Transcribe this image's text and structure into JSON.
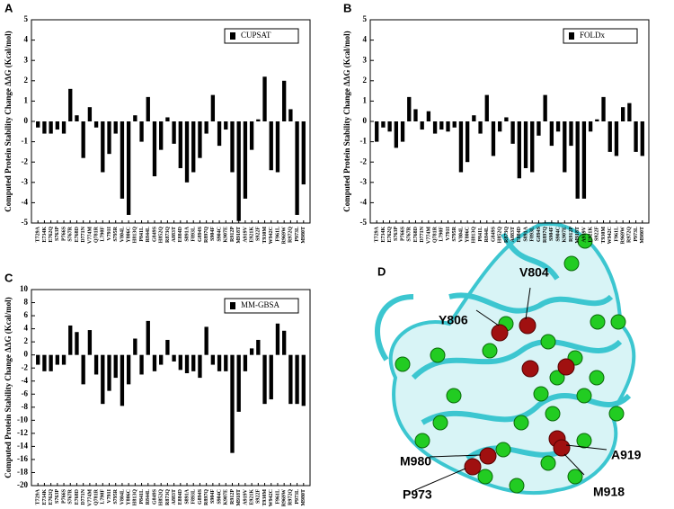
{
  "chart_data": [
    {
      "type": "bar",
      "label": "A",
      "ylabel": "Computed Protein Stability Change ΔΔG (Kcal/mol)",
      "categories": [
        "T729A",
        "E734K",
        "E762Q",
        "S763P",
        "P766S",
        "S767R",
        "E768D",
        "D771N",
        "V774M",
        "Q781R",
        "L790F",
        "V791I",
        "S795R",
        "V804L",
        "Y806C",
        "H813Q",
        "P841L",
        "R844L",
        "G849S",
        "H852Q",
        "R873Q",
        "A883T",
        "E884D",
        "S891A",
        "F893L",
        "G894S",
        "R897Q",
        "S904F",
        "S904C",
        "K907E",
        "R912P",
        "M918T",
        "A919V",
        "E921K",
        "S922F",
        "T930M",
        "W942C",
        "F961L",
        "R969W",
        "R972Q",
        "P973L",
        "M980T"
      ],
      "series": [
        {
          "name": "CUPSAT",
          "color": "#000000",
          "values": [
            -0.3,
            -0.6,
            -0.6,
            -0.4,
            -0.6,
            1.6,
            0.3,
            -1.8,
            0.7,
            -0.3,
            -2.5,
            -1.6,
            -0.6,
            -3.8,
            -4.6,
            0.3,
            -1.0,
            1.2,
            -2.7,
            -1.4,
            0.2,
            -1.1,
            -2.3,
            -3.0,
            -2.5,
            -1.8,
            -0.6,
            1.3,
            -1.2,
            -0.4,
            -2.5,
            -4.9,
            -3.8,
            -1.4,
            0.1,
            2.2,
            -2.4,
            -2.5,
            2.0,
            0.6,
            -4.6,
            -3.1
          ]
        }
      ],
      "ylim": [
        -5,
        5
      ],
      "yticks": [
        -5,
        -4,
        -3,
        -2,
        -1,
        0,
        1,
        2,
        3,
        4,
        5
      ],
      "legend": "upper right"
    },
    {
      "type": "bar",
      "label": "B",
      "ylabel": "Computed Protein Stability Change ΔΔG (Kcal/mol)",
      "categories": [
        "T729A",
        "E734K",
        "E762Q",
        "S763P",
        "P766S",
        "S767R",
        "E768D",
        "D771N",
        "V774M",
        "Q781R",
        "L790F",
        "V791I",
        "S795R",
        "V804L",
        "Y806C",
        "H813Q",
        "P841L",
        "R844L",
        "G849S",
        "H852Q",
        "R873Q",
        "A883T",
        "E884D",
        "S891A",
        "F893L",
        "G894S",
        "R897Q",
        "S904F",
        "S904C",
        "K907E",
        "R912P",
        "M918T",
        "A919V",
        "E921K",
        "S922F",
        "T930M",
        "W942C",
        "F961L",
        "R969W",
        "R972Q",
        "P973L",
        "M980T"
      ],
      "series": [
        {
          "name": "FOLDx",
          "color": "#000000",
          "values": [
            -1.0,
            -0.3,
            -0.5,
            -1.3,
            -1.0,
            1.2,
            0.6,
            -0.4,
            0.5,
            -0.6,
            -0.4,
            -0.5,
            -0.3,
            -2.5,
            -2.0,
            0.3,
            -0.6,
            1.3,
            -1.7,
            -0.5,
            0.2,
            -1.1,
            -2.8,
            -2.3,
            -2.5,
            -0.7,
            1.3,
            -1.2,
            -0.5,
            -2.5,
            -1.2,
            -3.8,
            -3.8,
            -0.5,
            0.1,
            1.2,
            -1.5,
            -1.7,
            0.7,
            0.9,
            -1.5,
            -1.7
          ]
        }
      ],
      "ylim": [
        -5,
        5
      ],
      "yticks": [
        -5,
        -4,
        -3,
        -2,
        -1,
        0,
        1,
        2,
        3,
        4,
        5
      ],
      "legend": "upper right"
    },
    {
      "type": "bar",
      "label": "C",
      "ylabel": "Computed Protein Stability Change ΔΔG (Kcal/mol)",
      "categories": [
        "T729A",
        "E734K",
        "E762Q",
        "S763P",
        "P766S",
        "S767R",
        "E768D",
        "D771N",
        "V774M",
        "Q781R",
        "L790F",
        "V791I",
        "S795R",
        "V804L",
        "Y806C",
        "H813Q",
        "P841L",
        "R844L",
        "G849S",
        "H852Q",
        "R873Q",
        "A883T",
        "E884D",
        "S891A",
        "F893L",
        "G894S",
        "R897Q",
        "S904F",
        "S904C",
        "K907E",
        "R912P",
        "M918T",
        "A919V",
        "E921K",
        "S922F",
        "T930M",
        "W942C",
        "F961L",
        "R969W",
        "R972Q",
        "P973L",
        "M980T"
      ],
      "series": [
        {
          "name": "MM-GBSA",
          "color": "#000000",
          "values": [
            -1.5,
            -2.5,
            -2.5,
            -1.5,
            -1.5,
            4.5,
            3.5,
            -4.5,
            3.8,
            -3.0,
            -7.5,
            -5.5,
            -3.5,
            -7.8,
            -4.5,
            2.5,
            -3.0,
            5.2,
            -2.5,
            -1.5,
            2.3,
            -1.0,
            -2.3,
            -2.8,
            -2.5,
            -3.5,
            4.3,
            -1.5,
            -2.5,
            -2.5,
            -15.0,
            -8.7,
            -2.5,
            1.0,
            2.3,
            -7.5,
            -6.8,
            4.8,
            3.7,
            -7.5,
            -7.5,
            -7.8
          ]
        }
      ],
      "ylim": [
        -20,
        10
      ],
      "yticks": [
        -20,
        -18,
        -16,
        -14,
        -12,
        -10,
        -8,
        -6,
        -4,
        -2,
        0,
        2,
        4,
        6,
        8,
        10
      ],
      "legend": "upper right"
    }
  ],
  "structure_panel": {
    "label": "D",
    "residues": [
      "V804",
      "Y806",
      "M980",
      "P973",
      "A919",
      "M918"
    ]
  }
}
